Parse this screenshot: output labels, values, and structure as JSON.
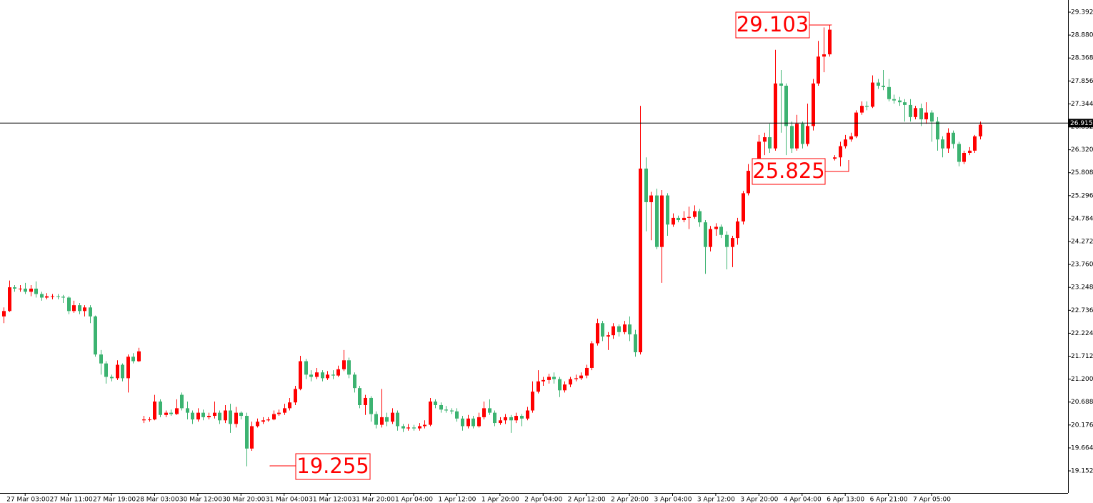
{
  "chart_data": {
    "type": "candlestick",
    "categories": [
      null,
      null,
      null,
      null,
      "27 Mar 03:00",
      null,
      null,
      null,
      null,
      null,
      null,
      null,
      "27 Mar 11:00",
      null,
      null,
      null,
      null,
      null,
      null,
      null,
      "27 Mar 19:00",
      null,
      null,
      null,
      null,
      null,
      null,
      null,
      "28 Mar 03:00",
      null,
      null,
      null,
      null,
      null,
      null,
      null,
      "30 Mar 12:00",
      null,
      null,
      null,
      null,
      null,
      null,
      null,
      "30 Mar 20:00",
      null,
      null,
      null,
      null,
      null,
      null,
      null,
      "31 Mar 04:00",
      null,
      null,
      null,
      null,
      null,
      null,
      null,
      "31 Mar 12:00",
      null,
      null,
      null,
      null,
      null,
      null,
      null,
      "31 Mar 20:00",
      null,
      null,
      null,
      null,
      null,
      null,
      null,
      "1 Apr 04:00",
      null,
      null,
      null,
      null,
      null,
      null,
      null,
      "1 Apr 12:00",
      null,
      null,
      null,
      null,
      null,
      null,
      null,
      "1 Apr 20:00",
      null,
      null,
      null,
      null,
      null,
      null,
      null,
      "2 Apr 04:00",
      null,
      null,
      null,
      null,
      null,
      null,
      null,
      "2 Apr 12:00",
      null,
      null,
      null,
      null,
      null,
      null,
      null,
      "2 Apr 20:00",
      null,
      null,
      null,
      null,
      null,
      null,
      null,
      "3 Apr 04:00",
      null,
      null,
      null,
      null,
      null,
      null,
      null,
      "3 Apr 12:00",
      null,
      null,
      null,
      null,
      null,
      null,
      null,
      "3 Apr 20:00",
      null,
      null,
      null,
      null,
      null,
      null,
      null,
      "4 Apr 04:00",
      null,
      null,
      null,
      null,
      null,
      null,
      null,
      "6 Apr 13:00",
      null,
      null,
      null,
      null,
      null,
      null,
      null,
      "6 Apr 21:00",
      null,
      null,
      null,
      null,
      null,
      null,
      null,
      "7 Apr 05:00",
      null,
      null,
      null,
      null,
      null,
      null,
      null,
      null,
      null
    ],
    "open": [
      22.6,
      22.72,
      23.25,
      23.22,
      23.22,
      23.15,
      23.22,
      23.1,
      23.02,
      23.05,
      23.05,
      23.04,
      23.02,
      22.72,
      22.85,
      22.72,
      22.8,
      22.6,
      21.75,
      21.55,
      21.25,
      21.22,
      21.52,
      21.22,
      21.7,
      21.6,
      20.28,
      20.3,
      20.3,
      20.7,
      20.4,
      20.45,
      20.42,
      20.85,
      20.55,
      20.45,
      20.3,
      20.45,
      20.35,
      20.38,
      20.45,
      20.28,
      20.5,
      20.2,
      20.45,
      20.38,
      19.65,
      20.15,
      20.25,
      20.28,
      20.3,
      20.42,
      20.45,
      20.55,
      20.68,
      20.98,
      21.6,
      21.3,
      21.25,
      21.35,
      21.22,
      21.3,
      21.28,
      21.42,
      21.62,
      21.3,
      21.0,
      20.62,
      20.78,
      20.42,
      20.18,
      20.35,
      20.25,
      20.45,
      20.15,
      20.1,
      20.12,
      20.1,
      20.15,
      20.18,
      20.7,
      20.62,
      20.52,
      20.5,
      20.48,
      20.32,
      20.15,
      20.32,
      20.15,
      20.35,
      20.55,
      20.45,
      20.22,
      20.28,
      20.35,
      20.28,
      20.38,
      20.32,
      20.5,
      20.92,
      21.15,
      21.18,
      21.25,
      21.2,
      20.95,
      21.08,
      21.2,
      21.22,
      21.28,
      21.45,
      22.0,
      22.45,
      22.15,
      22.18,
      22.38,
      22.25,
      22.42,
      22.2,
      21.8,
      25.9,
      25.15,
      25.3,
      24.15,
      25.3,
      24.65,
      24.8,
      24.75,
      24.8,
      24.82,
      24.95,
      24.7,
      24.15,
      24.55,
      24.6,
      24.42,
      24.15,
      24.35,
      24.72,
      25.35,
      25.85,
      25.9,
      26.5,
      26.6,
      26.35,
      27.8,
      27.75,
      26.85,
      26.35,
      26.9,
      26.45,
      26.85,
      27.8,
      28.4,
      28.45,
      26.12,
      26.15,
      26.4,
      26.55,
      26.62,
      27.15,
      27.3,
      27.28,
      27.82,
      27.75,
      27.72,
      27.45,
      27.42,
      27.38,
      27.32,
      27.05,
      27.25,
      27.0,
      27.15,
      26.95,
      26.55,
      26.35,
      26.7,
      26.45,
      26.05,
      26.25,
      26.3,
      26.62
    ],
    "high": [
      22.8,
      23.4,
      23.3,
      23.3,
      23.35,
      23.3,
      23.38,
      23.15,
      23.12,
      23.1,
      23.1,
      23.08,
      23.05,
      22.95,
      22.9,
      22.85,
      22.85,
      22.62,
      21.85,
      21.6,
      21.3,
      21.62,
      21.55,
      21.75,
      21.78,
      21.9,
      20.38,
      20.35,
      20.85,
      20.75,
      20.5,
      20.52,
      20.75,
      20.9,
      20.7,
      20.5,
      20.55,
      20.52,
      20.45,
      20.7,
      20.5,
      20.62,
      20.65,
      20.58,
      20.48,
      20.45,
      20.25,
      20.32,
      20.35,
      20.35,
      20.5,
      20.52,
      20.65,
      20.78,
      21.05,
      21.72,
      21.65,
      21.4,
      21.45,
      21.4,
      21.38,
      21.4,
      21.5,
      21.85,
      21.68,
      21.35,
      21.05,
      20.85,
      20.82,
      20.48,
      20.98,
      20.45,
      20.55,
      20.5,
      20.2,
      20.2,
      20.18,
      20.22,
      20.28,
      20.78,
      20.75,
      20.68,
      20.6,
      20.55,
      20.55,
      20.38,
      20.4,
      20.38,
      20.45,
      20.7,
      20.75,
      20.5,
      20.35,
      20.42,
      20.4,
      20.45,
      20.42,
      20.58,
      21.15,
      21.4,
      21.25,
      21.32,
      21.35,
      21.25,
      21.15,
      21.25,
      21.3,
      21.35,
      21.52,
      22.05,
      22.55,
      22.5,
      22.25,
      22.45,
      22.42,
      22.5,
      22.6,
      22.3,
      27.3,
      26.15,
      25.38,
      25.45,
      25.42,
      25.35,
      24.9,
      24.85,
      24.95,
      25.05,
      25.08,
      25.0,
      24.75,
      24.62,
      24.68,
      24.65,
      24.5,
      24.4,
      24.8,
      25.4,
      26.0,
      25.95,
      26.65,
      26.7,
      26.9,
      28.55,
      28.1,
      27.8,
      26.95,
      27.1,
      26.95,
      27.35,
      27.9,
      28.75,
      29.05,
      29.103,
      26.2,
      26.5,
      26.65,
      26.7,
      27.2,
      27.4,
      27.4,
      27.98,
      27.9,
      28.1,
      27.9,
      27.55,
      27.5,
      27.45,
      27.45,
      27.3,
      27.35,
      27.38,
      27.2,
      27.05,
      26.62,
      26.8,
      26.75,
      26.5,
      26.3,
      26.38,
      26.65,
      26.95
    ],
    "low": [
      22.45,
      22.7,
      23.15,
      23.15,
      23.1,
      23.05,
      23.02,
      22.95,
      22.98,
      22.98,
      22.98,
      22.9,
      22.65,
      22.68,
      22.65,
      22.6,
      22.45,
      21.7,
      21.3,
      21.1,
      21.15,
      21.18,
      21.15,
      20.9,
      21.55,
      21.58,
      20.22,
      20.25,
      20.28,
      20.35,
      20.35,
      20.38,
      20.4,
      20.5,
      20.3,
      20.2,
      20.25,
      20.28,
      20.3,
      20.32,
      20.2,
      20.22,
      20.0,
      20.12,
      20.3,
      19.255,
      19.6,
      20.12,
      20.2,
      20.25,
      20.28,
      20.38,
      20.4,
      20.5,
      20.62,
      20.95,
      21.2,
      21.15,
      21.2,
      21.15,
      21.18,
      21.2,
      21.25,
      21.38,
      21.22,
      20.9,
      20.55,
      20.4,
      20.25,
      20.1,
      20.12,
      20.15,
      20.2,
      20.05,
      20.02,
      20.05,
      20.05,
      20.05,
      20.1,
      20.15,
      20.55,
      20.45,
      20.45,
      20.42,
      20.25,
      20.05,
      20.1,
      20.1,
      20.12,
      20.3,
      20.4,
      20.15,
      20.18,
      20.2,
      20.0,
      20.22,
      20.15,
      20.28,
      20.45,
      20.88,
      21.05,
      21.1,
      21.1,
      20.8,
      20.9,
      21.02,
      21.15,
      21.18,
      21.22,
      21.4,
      21.95,
      22.05,
      21.85,
      22.1,
      22.15,
      22.2,
      22.05,
      21.7,
      21.75,
      24.5,
      24.3,
      24.1,
      23.35,
      24.4,
      24.6,
      24.7,
      24.7,
      24.55,
      24.78,
      24.6,
      23.55,
      24.05,
      24.4,
      24.35,
      23.65,
      23.7,
      24.2,
      24.65,
      25.3,
      25.75,
      25.85,
      26.2,
      26.25,
      26.3,
      26.7,
      26.2,
      26.25,
      26.3,
      26.35,
      26.4,
      26.75,
      27.75,
      28.05,
      28.4,
      26.08,
      25.95,
      26.35,
      26.5,
      26.58,
      27.1,
      27.2,
      27.25,
      27.68,
      27.65,
      27.4,
      27.35,
      27.3,
      26.95,
      26.95,
      27.0,
      26.85,
      26.9,
      26.5,
      26.3,
      26.15,
      26.25,
      26.35,
      25.95,
      26.0,
      26.2,
      26.25,
      26.55
    ],
    "close": [
      22.72,
      23.25,
      23.22,
      23.22,
      23.15,
      23.22,
      23.1,
      23.02,
      23.05,
      23.05,
      23.04,
      23.02,
      22.72,
      22.85,
      22.72,
      22.8,
      22.6,
      21.75,
      21.55,
      21.25,
      21.22,
      21.52,
      21.22,
      21.7,
      21.6,
      21.82,
      20.3,
      20.3,
      20.7,
      20.4,
      20.45,
      20.42,
      20.55,
      20.55,
      20.45,
      20.3,
      20.45,
      20.35,
      20.38,
      20.45,
      20.28,
      20.5,
      20.2,
      20.45,
      20.38,
      19.65,
      20.15,
      20.25,
      20.28,
      20.3,
      20.42,
      20.45,
      20.55,
      20.68,
      20.98,
      21.6,
      21.3,
      21.25,
      21.35,
      21.22,
      21.3,
      21.28,
      21.42,
      21.62,
      21.3,
      21.0,
      20.62,
      20.78,
      20.42,
      20.18,
      20.35,
      20.25,
      20.45,
      20.15,
      20.1,
      20.12,
      20.1,
      20.15,
      20.18,
      20.7,
      20.62,
      20.52,
      20.5,
      20.48,
      20.32,
      20.15,
      20.32,
      20.15,
      20.35,
      20.55,
      20.45,
      20.22,
      20.28,
      20.35,
      20.28,
      20.38,
      20.32,
      20.5,
      20.92,
      21.15,
      21.18,
      21.25,
      21.2,
      20.95,
      21.08,
      21.2,
      21.22,
      21.28,
      21.45,
      22.0,
      22.45,
      22.15,
      22.18,
      22.38,
      22.25,
      22.42,
      22.2,
      21.8,
      25.9,
      25.15,
      25.3,
      24.15,
      25.3,
      24.65,
      24.8,
      24.75,
      24.8,
      24.82,
      24.95,
      24.7,
      24.15,
      24.55,
      24.6,
      24.42,
      24.15,
      24.35,
      24.72,
      25.35,
      25.85,
      25.9,
      26.5,
      26.6,
      26.35,
      27.8,
      27.75,
      26.85,
      26.35,
      26.9,
      26.45,
      26.85,
      27.8,
      28.4,
      28.45,
      29.0,
      26.15,
      26.4,
      26.55,
      26.62,
      27.15,
      27.3,
      27.28,
      27.82,
      27.75,
      27.72,
      27.45,
      27.42,
      27.38,
      27.32,
      27.05,
      27.25,
      27.0,
      27.15,
      26.95,
      26.55,
      26.35,
      26.7,
      26.45,
      26.05,
      26.25,
      26.3,
      26.62,
      26.88
    ],
    "up_color": "#ff0000",
    "down_color": "#3cb371",
    "ylim": [
      18.658,
      29.663
    ],
    "yticks": [
      29.392,
      {
        "value": 28.88,
        "label": "28.880"
      },
      28.368,
      27.856,
      27.344,
      26.832,
      {
        "value": 26.32,
        "label": "26.320"
      },
      25.808,
      25.296,
      24.784,
      24.272,
      {
        "value": 23.76,
        "label": "23.760"
      },
      23.248,
      22.736,
      22.224,
      21.712,
      {
        "value": 21.2,
        "label": "21.200"
      },
      20.688,
      20.176,
      19.664,
      19.152
    ],
    "last_price": 26.915,
    "annotations": [
      "29.103",
      "25.825",
      "19.255"
    ]
  }
}
